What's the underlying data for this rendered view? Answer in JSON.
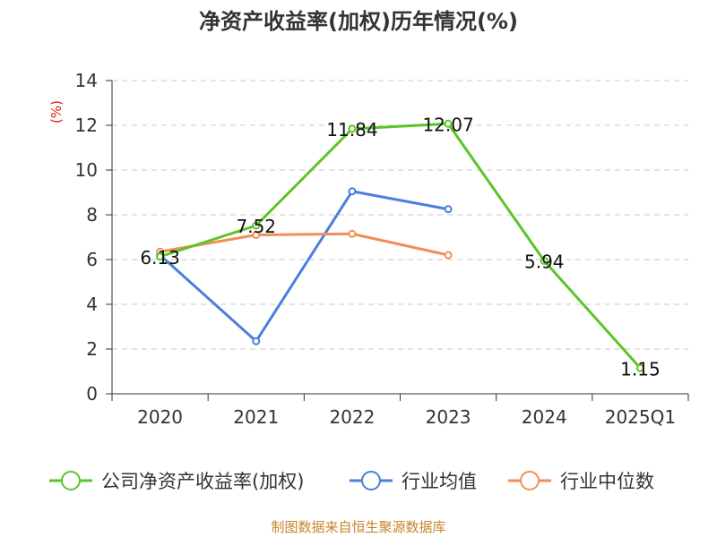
{
  "chart_data": {
    "type": "line",
    "title": "净资产收益率(加权)历年情况(%)",
    "ylabel": "(%)",
    "categories": [
      "2020",
      "2021",
      "2022",
      "2023",
      "2024",
      "2025Q1"
    ],
    "yticks": [
      "0",
      "2",
      "4",
      "6",
      "8",
      "10",
      "12",
      "14"
    ],
    "ylim": [
      0,
      14
    ],
    "grid": true,
    "legend_position": "bottom",
    "series": [
      {
        "name": "公司净资产收益率(加权)",
        "color": "#5ac528",
        "values": [
          6.13,
          7.52,
          11.84,
          12.07,
          5.94,
          1.15
        ],
        "data_labels": [
          "6.13",
          "7.52",
          "11.84",
          "12.07",
          "5.94",
          "1.15"
        ]
      },
      {
        "name": "行业均值",
        "color": "#4a7fdc",
        "values": [
          6.2,
          2.35,
          9.05,
          8.25,
          null,
          null
        ]
      },
      {
        "name": "行业中位数",
        "color": "#f28e55",
        "values": [
          6.35,
          7.1,
          7.15,
          6.2,
          null,
          null
        ]
      }
    ]
  },
  "source": "制图数据来自恒生聚源数据库"
}
